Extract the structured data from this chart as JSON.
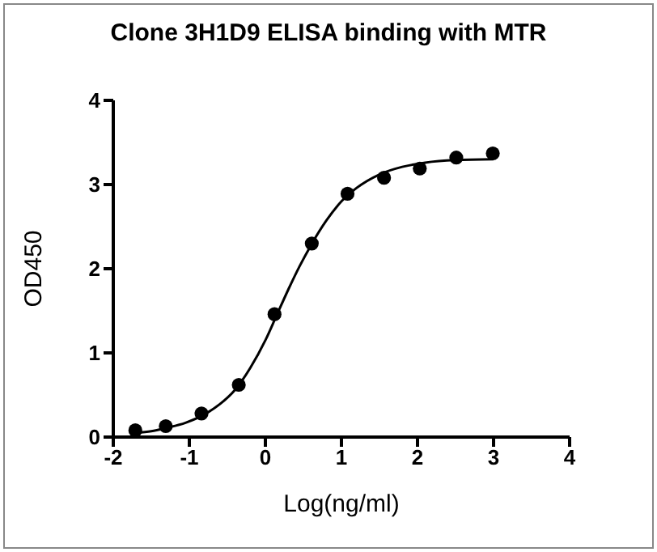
{
  "chart_data": {
    "type": "scatter",
    "title": "Clone 3H1D9 ELISA binding with MTR",
    "xlabel": "Log(ng/ml)",
    "ylabel": "OD450",
    "xlim": [
      -2,
      4
    ],
    "ylim": [
      0,
      4
    ],
    "xticks": [
      -2,
      -1,
      0,
      1,
      2,
      3,
      4
    ],
    "yticks": [
      0,
      1,
      2,
      3,
      4
    ],
    "grid": false,
    "legend": false,
    "marker": "circle",
    "series": [
      {
        "color": "#000000",
        "x": [
          -1.71,
          -1.31,
          -0.84,
          -0.35,
          0.12,
          0.61,
          1.08,
          1.56,
          2.03,
          2.51,
          2.99
        ],
        "values": [
          0.08,
          0.13,
          0.28,
          0.62,
          1.46,
          2.3,
          2.89,
          3.08,
          3.19,
          3.32,
          3.37
        ]
      },
      {
        "type": "line",
        "color": "#000000",
        "marker": "none",
        "x": [
          -1.7,
          -1.5,
          -1.3,
          -1.05,
          -0.8,
          -0.6,
          -0.4,
          -0.2,
          0,
          0.15,
          0.3,
          0.45,
          0.6,
          0.8,
          1,
          1.2,
          1.5,
          1.8,
          2.1,
          2.5,
          3
        ],
        "values": [
          0.05,
          0.07,
          0.11,
          0.17,
          0.27,
          0.39,
          0.56,
          0.82,
          1.15,
          1.45,
          1.75,
          2.03,
          2.28,
          2.57,
          2.8,
          2.96,
          3.12,
          3.21,
          3.26,
          3.29,
          3.3
        ]
      }
    ]
  }
}
